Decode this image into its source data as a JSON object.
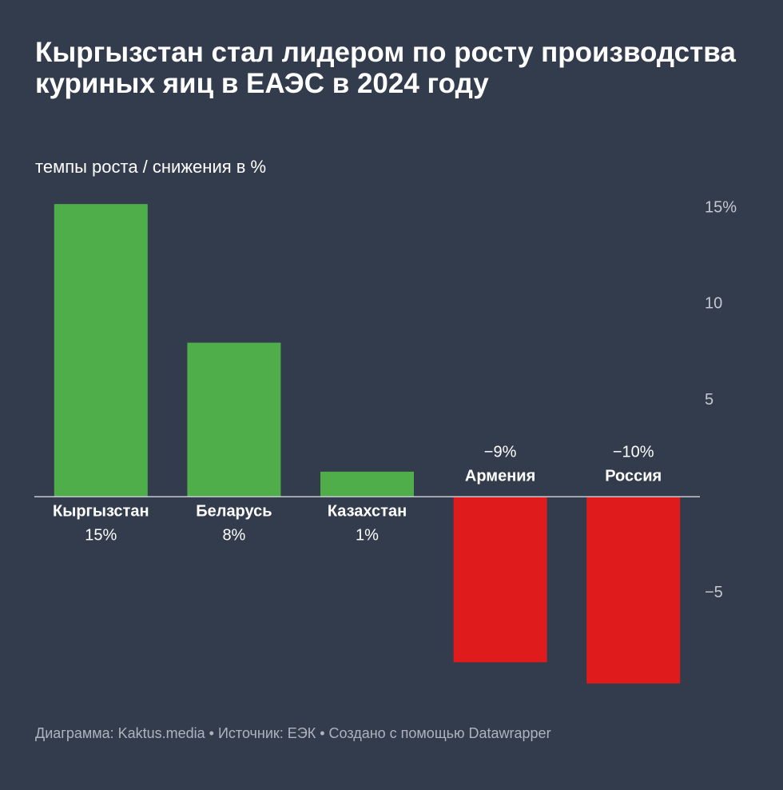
{
  "chart_data": {
    "type": "bar",
    "title": "Кыргызстан стал лидером по росту производства куриных яиц в ЕАЭС в 2024 году",
    "subtitle": "темпы роста / снижения в %",
    "categories": [
      "Кыргызстан",
      "Беларусь",
      "Казахстан",
      "Армения",
      "Россия"
    ],
    "values": [
      15.2,
      8,
      1.3,
      -8.6,
      -9.7
    ],
    "value_labels": [
      "15%",
      "8%",
      "1%",
      "−9%",
      "−10%"
    ],
    "colors": [
      "#4fae4a",
      "#4fae4a",
      "#4fae4a",
      "#e01b1b",
      "#e01b1b"
    ],
    "ylim": [
      -10,
      15
    ],
    "yticks": [
      {
        "value": 15,
        "label": "15%"
      },
      10,
      5,
      {
        "value": -5,
        "label": "−5"
      }
    ],
    "grid": false,
    "footer": "Диаграмма: Kaktus.media • Источник: ЕЭК • Создано с помощью Datawrapper"
  }
}
